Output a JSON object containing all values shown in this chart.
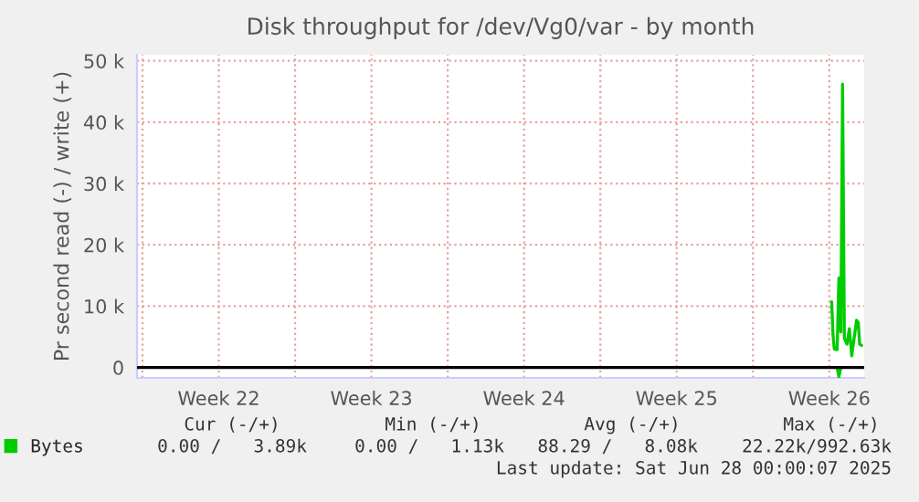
{
  "chart_data": {
    "type": "line",
    "title": "Disk throughput for /dev/Vg0/var - by month",
    "ylabel": "Pr second read (-) / write (+)",
    "xlim": [
      "2025-05-25T18:00",
      "2025-06-28T02:24"
    ],
    "xticks": [
      {
        "value": "2025-05-26",
        "label": null
      },
      {
        "value": "2025-05-29T12:00",
        "label": "Week 22"
      },
      {
        "value": "2025-06-02",
        "label": null
      },
      {
        "value": "2025-06-05T12:00",
        "label": "Week 23"
      },
      {
        "value": "2025-06-09",
        "label": null
      },
      {
        "value": "2025-06-12T12:00",
        "label": "Week 24"
      },
      {
        "value": "2025-06-16",
        "label": null
      },
      {
        "value": "2025-06-19T12:00",
        "label": "Week 25"
      },
      {
        "value": "2025-06-23",
        "label": null
      },
      {
        "value": "2025-06-26T12:00",
        "label": "Week 26"
      }
    ],
    "ylim": [
      -1.7,
      51
    ],
    "yticks": [
      {
        "value": 0,
        "label": "0"
      },
      {
        "value": 10,
        "label": "10 k"
      },
      {
        "value": 20,
        "label": "20 k"
      },
      {
        "value": 30,
        "label": "30 k"
      },
      {
        "value": 40,
        "label": "40 k"
      },
      {
        "value": 50,
        "label": "50 k"
      }
    ],
    "grid": true,
    "legend": "bottom",
    "ref_lines": [
      {
        "axis": "y",
        "value": 0,
        "color": "#000000"
      }
    ],
    "series": [
      {
        "name": "Bytes",
        "color": "#00cc00",
        "x": [
          "2025-06-26T14:38",
          "2025-06-26T16:05",
          "2025-06-26T17:31",
          "2025-06-26T20:38",
          "2025-06-26T22:34",
          "2025-06-27T00:43",
          "2025-06-27T02:38",
          "2025-06-27T04:34",
          "2025-06-27T07:26",
          "2025-06-27T10:05",
          "2025-06-27T12:43",
          "2025-06-27T15:22",
          "2025-06-27T18:00",
          "2025-06-27T19:55",
          "2025-06-27T21:22",
          "2025-06-27T23:31"
        ],
        "values": [
          10.7,
          5.3,
          3.0,
          2.9,
          14.6,
          5.8,
          46.2,
          4.8,
          3.8,
          6.3,
          1.9,
          4.8,
          7.7,
          7.3,
          3.8,
          3.6
        ]
      },
      {
        "color": "#00cc00",
        "x": [
          "2025-06-26T20:38",
          "2025-06-26T22:34",
          "2025-06-27T00:43"
        ],
        "values": [
          0,
          -1.5,
          0
        ]
      }
    ],
    "annotations": [
      "Cur (-/+)",
      "Min (-/+)",
      "Avg (-/+)",
      "Max (-/+)",
      "0.00 /   3.89k",
      "0.00 /   1.13k",
      "88.29 /   8.08k",
      "22.22k/992.63k",
      "Last update: Sat Jun 28 00:00:07 2025"
    ]
  }
}
